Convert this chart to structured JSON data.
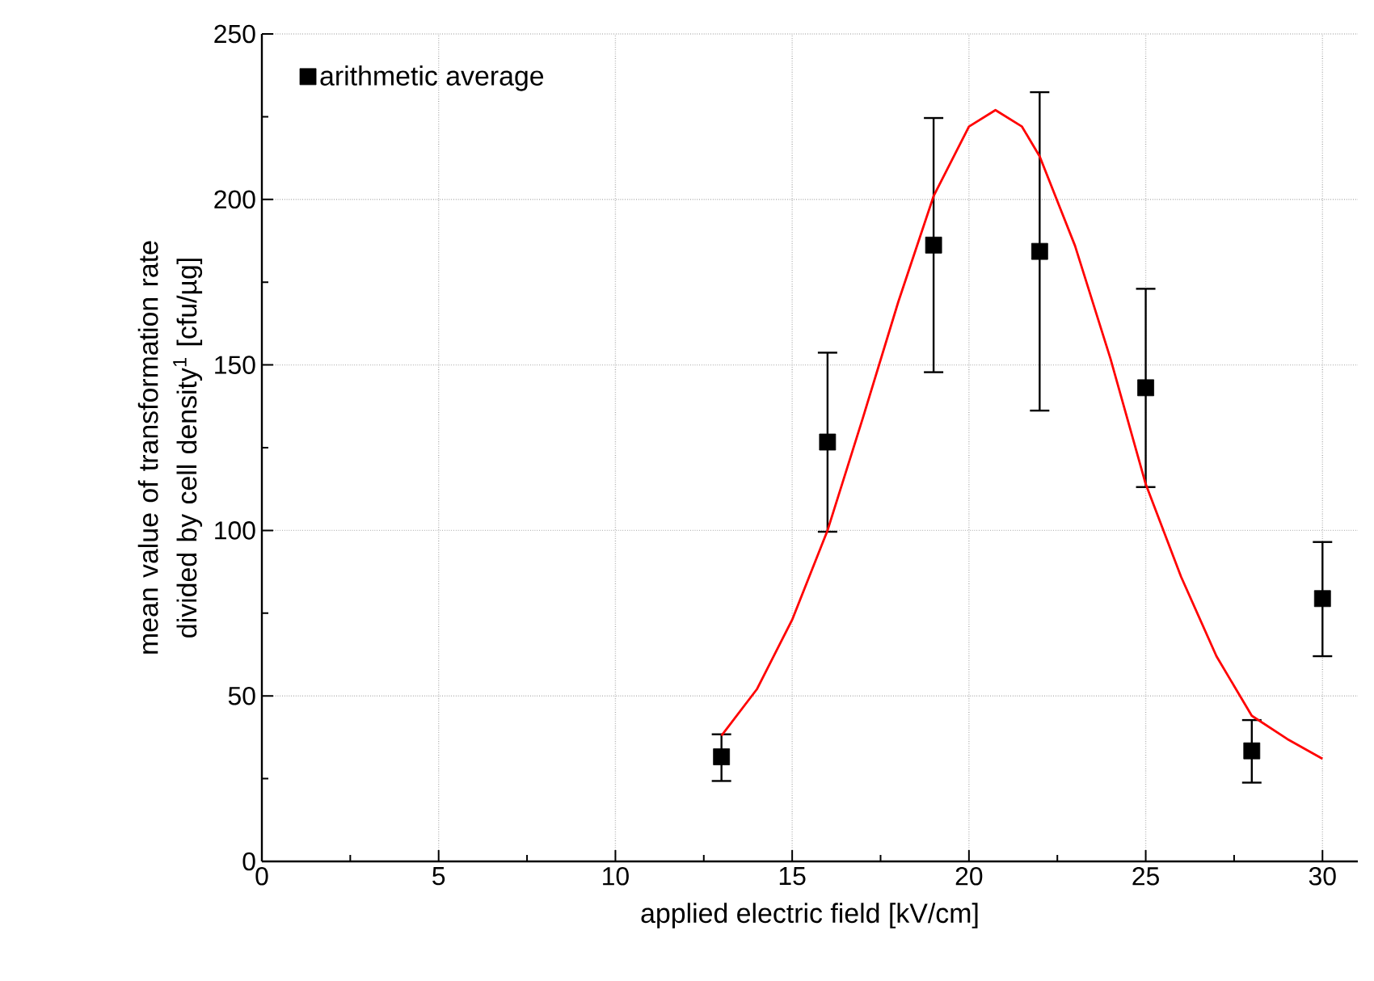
{
  "chart_data": {
    "type": "scatter",
    "xlabel": "applied electric field [kV/cm]",
    "ylabel": "mean value of transformation rate divided by cell density$^{1}$  [cfu/µg]",
    "xlim": [
      0,
      31
    ],
    "xticks": [
      0,
      5,
      10,
      15,
      20,
      25,
      30
    ],
    "ylim": [
      0,
      250
    ],
    "yticks": [
      0,
      50,
      100,
      150,
      200,
      250
    ],
    "grid": true,
    "legend": "top left",
    "series": [
      {
        "name": "arithmetic average",
        "color": "#000000",
        "marker": "square",
        "x": [
          13,
          16,
          19,
          22,
          25,
          28,
          30
        ],
        "values": [
          31.6,
          126.7,
          186.2,
          184.3,
          143.1,
          33.4,
          79.4
        ],
        "errors": [
          [
            24.3,
            38.4
          ],
          [
            99.6,
            153.7
          ],
          [
            147.8,
            224.6
          ],
          [
            136.2,
            232.4
          ],
          [
            113.1,
            173.0
          ],
          [
            23.8,
            42.7
          ],
          [
            62.0,
            96.5
          ]
        ]
      },
      {
        "type": "line",
        "color": "#ff0000",
        "marker": "none",
        "line_style": "solid",
        "x": [
          13,
          14,
          15,
          16,
          17,
          18,
          19,
          20,
          20.75,
          21.5,
          22,
          23,
          24,
          25,
          26,
          27,
          28,
          29,
          30
        ],
        "values": [
          38,
          52,
          73,
          100,
          134,
          169,
          201,
          222,
          227,
          222,
          213,
          186,
          152,
          114,
          86,
          62,
          44,
          37,
          31
        ]
      }
    ]
  }
}
